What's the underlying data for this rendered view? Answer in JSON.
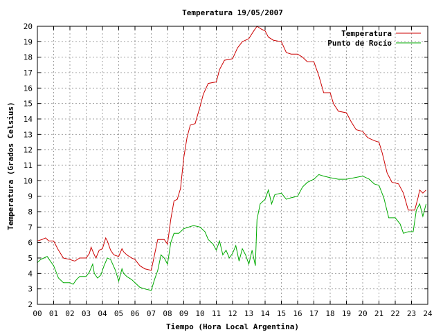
{
  "chart_data": {
    "type": "line",
    "title": "Temperatura 19/05/2007",
    "xlabel": "Tiempo (Hora Local Argentina)",
    "ylabel": "Temperatura (Grados Celsius)",
    "xlim": [
      0,
      24
    ],
    "ylim": [
      2,
      20
    ],
    "x_ticks": [
      0,
      1,
      2,
      3,
      4,
      5,
      6,
      7,
      8,
      9,
      10,
      11,
      12,
      13,
      14,
      15,
      16,
      17,
      18,
      19,
      20,
      21,
      22,
      23,
      24
    ],
    "x_tick_labels": [
      "00",
      "01",
      "02",
      "03",
      "04",
      "05",
      "06",
      "07",
      "08",
      "09",
      "10",
      "11",
      "12",
      "13",
      "14",
      "15",
      "16",
      "17",
      "18",
      "19",
      "20",
      "21",
      "22",
      "23",
      "24"
    ],
    "y_ticks": [
      2,
      3,
      4,
      5,
      6,
      7,
      8,
      9,
      10,
      11,
      12,
      13,
      14,
      15,
      16,
      17,
      18,
      19,
      20
    ],
    "y_tick_labels": [
      "2",
      "3",
      "4",
      "5",
      "6",
      "7",
      "8",
      "9",
      "10",
      "11",
      "12",
      "13",
      "14",
      "15",
      "16",
      "17",
      "18",
      "19",
      "20"
    ],
    "grid": true,
    "legend_position": "top-right",
    "series": [
      {
        "name": "Temperatura",
        "color": "#cc0000",
        "points": [
          [
            0,
            6.1
          ],
          [
            0.3,
            6.2
          ],
          [
            0.5,
            6.3
          ],
          [
            0.7,
            6.1
          ],
          [
            1.0,
            6.1
          ],
          [
            1.3,
            5.5
          ],
          [
            1.6,
            5.0
          ],
          [
            2.0,
            4.9
          ],
          [
            2.3,
            4.8
          ],
          [
            2.6,
            5.0
          ],
          [
            3.0,
            5.0
          ],
          [
            3.2,
            5.3
          ],
          [
            3.3,
            5.7
          ],
          [
            3.5,
            5.2
          ],
          [
            3.6,
            5.0
          ],
          [
            3.8,
            5.5
          ],
          [
            4.0,
            5.6
          ],
          [
            4.2,
            6.3
          ],
          [
            4.3,
            6.1
          ],
          [
            4.5,
            5.5
          ],
          [
            4.7,
            5.2
          ],
          [
            5.0,
            5.1
          ],
          [
            5.2,
            5.6
          ],
          [
            5.3,
            5.4
          ],
          [
            5.5,
            5.2
          ],
          [
            5.8,
            5.0
          ],
          [
            6.0,
            4.9
          ],
          [
            6.3,
            4.5
          ],
          [
            6.6,
            4.3
          ],
          [
            7.0,
            4.2
          ],
          [
            7.2,
            5.2
          ],
          [
            7.4,
            6.2
          ],
          [
            7.8,
            6.2
          ],
          [
            8.0,
            5.9
          ],
          [
            8.2,
            7.5
          ],
          [
            8.4,
            8.7
          ],
          [
            8.6,
            8.8
          ],
          [
            8.8,
            9.5
          ],
          [
            9.0,
            11.5
          ],
          [
            9.2,
            12.8
          ],
          [
            9.4,
            13.6
          ],
          [
            9.7,
            13.7
          ],
          [
            10.0,
            14.8
          ],
          [
            10.2,
            15.6
          ],
          [
            10.5,
            16.3
          ],
          [
            11.0,
            16.4
          ],
          [
            11.2,
            17.2
          ],
          [
            11.5,
            17.8
          ],
          [
            12.0,
            17.9
          ],
          [
            12.3,
            18.6
          ],
          [
            12.6,
            19.0
          ],
          [
            13.0,
            19.2
          ],
          [
            13.3,
            19.7
          ],
          [
            13.5,
            20.0
          ],
          [
            13.8,
            19.8
          ],
          [
            14.0,
            19.7
          ],
          [
            14.2,
            19.3
          ],
          [
            14.5,
            19.1
          ],
          [
            15.0,
            19.0
          ],
          [
            15.3,
            18.3
          ],
          [
            15.6,
            18.2
          ],
          [
            16.0,
            18.2
          ],
          [
            16.3,
            18.0
          ],
          [
            16.6,
            17.7
          ],
          [
            17.0,
            17.7
          ],
          [
            17.3,
            16.8
          ],
          [
            17.6,
            15.7
          ],
          [
            18.0,
            15.7
          ],
          [
            18.2,
            15.0
          ],
          [
            18.5,
            14.5
          ],
          [
            19.0,
            14.4
          ],
          [
            19.3,
            13.8
          ],
          [
            19.6,
            13.3
          ],
          [
            20.0,
            13.2
          ],
          [
            20.3,
            12.8
          ],
          [
            20.7,
            12.6
          ],
          [
            21.0,
            12.5
          ],
          [
            21.2,
            11.8
          ],
          [
            21.5,
            10.5
          ],
          [
            21.8,
            9.9
          ],
          [
            22.2,
            9.8
          ],
          [
            22.5,
            9.2
          ],
          [
            22.8,
            8.1
          ],
          [
            23.2,
            8.1
          ],
          [
            23.4,
            8.9
          ],
          [
            23.5,
            9.4
          ],
          [
            23.7,
            9.2
          ],
          [
            23.9,
            9.4
          ]
        ]
      },
      {
        "name": "Punto de Rocío",
        "color": "#00aa00",
        "points": [
          [
            0,
            4.7
          ],
          [
            0.2,
            4.9
          ],
          [
            0.4,
            5.0
          ],
          [
            0.6,
            5.1
          ],
          [
            0.8,
            4.8
          ],
          [
            1.0,
            4.5
          ],
          [
            1.3,
            3.7
          ],
          [
            1.6,
            3.4
          ],
          [
            2.0,
            3.4
          ],
          [
            2.2,
            3.3
          ],
          [
            2.4,
            3.6
          ],
          [
            2.6,
            3.8
          ],
          [
            3.0,
            3.8
          ],
          [
            3.2,
            4.1
          ],
          [
            3.4,
            4.6
          ],
          [
            3.5,
            4.0
          ],
          [
            3.7,
            3.7
          ],
          [
            3.9,
            3.9
          ],
          [
            4.1,
            4.5
          ],
          [
            4.3,
            5.0
          ],
          [
            4.5,
            4.9
          ],
          [
            4.8,
            4.2
          ],
          [
            5.0,
            3.5
          ],
          [
            5.2,
            4.3
          ],
          [
            5.3,
            4.0
          ],
          [
            5.5,
            3.8
          ],
          [
            5.8,
            3.6
          ],
          [
            6.0,
            3.4
          ],
          [
            6.3,
            3.1
          ],
          [
            6.6,
            3.0
          ],
          [
            7.0,
            2.9
          ],
          [
            7.2,
            3.6
          ],
          [
            7.4,
            4.2
          ],
          [
            7.6,
            5.2
          ],
          [
            7.8,
            5.0
          ],
          [
            8.0,
            4.6
          ],
          [
            8.2,
            6.0
          ],
          [
            8.4,
            6.6
          ],
          [
            8.7,
            6.6
          ],
          [
            9.0,
            6.9
          ],
          [
            9.3,
            7.0
          ],
          [
            9.6,
            7.1
          ],
          [
            10.0,
            7.0
          ],
          [
            10.3,
            6.7
          ],
          [
            10.5,
            6.2
          ],
          [
            10.8,
            5.9
          ],
          [
            11.0,
            5.5
          ],
          [
            11.2,
            6.1
          ],
          [
            11.4,
            5.2
          ],
          [
            11.6,
            5.5
          ],
          [
            11.8,
            5.0
          ],
          [
            12.0,
            5.3
          ],
          [
            12.2,
            5.8
          ],
          [
            12.4,
            4.8
          ],
          [
            12.6,
            5.6
          ],
          [
            12.8,
            5.2
          ],
          [
            13.0,
            4.6
          ],
          [
            13.2,
            5.5
          ],
          [
            13.4,
            4.5
          ],
          [
            13.5,
            7.5
          ],
          [
            13.7,
            8.5
          ],
          [
            14.0,
            8.8
          ],
          [
            14.2,
            9.4
          ],
          [
            14.4,
            8.5
          ],
          [
            14.6,
            9.1
          ],
          [
            15.0,
            9.2
          ],
          [
            15.3,
            8.8
          ],
          [
            15.6,
            8.9
          ],
          [
            16.0,
            9.0
          ],
          [
            16.3,
            9.6
          ],
          [
            16.6,
            9.9
          ],
          [
            17.0,
            10.1
          ],
          [
            17.3,
            10.4
          ],
          [
            17.6,
            10.3
          ],
          [
            18.0,
            10.2
          ],
          [
            18.5,
            10.1
          ],
          [
            19.0,
            10.1
          ],
          [
            19.5,
            10.2
          ],
          [
            20.0,
            10.3
          ],
          [
            20.4,
            10.1
          ],
          [
            20.7,
            9.8
          ],
          [
            21.0,
            9.7
          ],
          [
            21.3,
            8.9
          ],
          [
            21.6,
            7.6
          ],
          [
            22.0,
            7.6
          ],
          [
            22.3,
            7.2
          ],
          [
            22.5,
            6.6
          ],
          [
            22.8,
            6.7
          ],
          [
            23.1,
            6.7
          ],
          [
            23.3,
            8.1
          ],
          [
            23.5,
            8.5
          ],
          [
            23.7,
            7.7
          ],
          [
            23.9,
            8.5
          ]
        ]
      }
    ]
  }
}
